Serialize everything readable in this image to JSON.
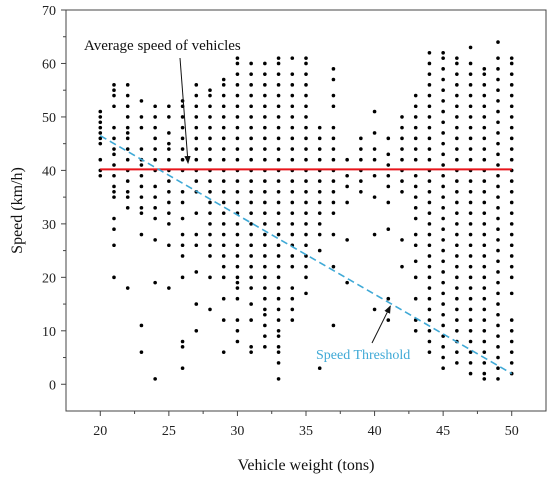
{
  "chart_data": {
    "type": "scatter",
    "xlabel": "Vehicle weight (tons)",
    "ylabel": "Speed (km/h)",
    "xlim": [
      17.5,
      52.5
    ],
    "ylim": [
      -5,
      70
    ],
    "xticks": [
      20,
      25,
      30,
      35,
      40,
      45,
      50
    ],
    "yticks": [
      0,
      10,
      20,
      30,
      40,
      50,
      60,
      70
    ],
    "grid": false,
    "series": [
      {
        "marker": "dot",
        "color": "#000000",
        "columns": [
          {
            "x": 20,
            "y": [
              39,
              40,
              42,
              45,
              46,
              47,
              48,
              49,
              50,
              51
            ]
          },
          {
            "x": 21,
            "y": [
              20,
              26,
              29,
              31,
              35,
              36,
              37,
              39,
              41,
              43,
              44,
              46,
              48,
              52,
              54,
              55,
              56
            ]
          },
          {
            "x": 22,
            "y": [
              18,
              33,
              35,
              36,
              38,
              40,
              42,
              44,
              46,
              47,
              48,
              50,
              52,
              54,
              56
            ]
          },
          {
            "x": 23,
            "y": [
              6,
              11,
              28,
              32,
              33,
              35,
              37,
              39,
              41,
              42,
              44,
              48,
              50,
              53
            ]
          },
          {
            "x": 24,
            "y": [
              1,
              19,
              27,
              31,
              33,
              35,
              37,
              40,
              42,
              44,
              46,
              48,
              50,
              52
            ]
          },
          {
            "x": 25,
            "y": [
              18,
              26,
              30,
              32,
              34,
              36,
              38,
              40,
              42,
              44,
              45,
              47,
              50,
              52
            ]
          },
          {
            "x": 26,
            "y": [
              3,
              7,
              8,
              20,
              24,
              26,
              28,
              31,
              34,
              36,
              40,
              42,
              44,
              46,
              48,
              50,
              52,
              53
            ]
          },
          {
            "x": 27,
            "y": [
              10,
              15,
              21,
              26,
              28,
              32,
              36,
              38,
              40,
              42,
              44,
              46,
              48,
              50,
              52,
              54,
              56
            ]
          },
          {
            "x": 28,
            "y": [
              14,
              20,
              24,
              26,
              28,
              30,
              32,
              34,
              36,
              38,
              40,
              42,
              44,
              46,
              48,
              50,
              52,
              54,
              55
            ]
          },
          {
            "x": 29,
            "y": [
              6,
              12,
              16,
              20,
              22,
              24,
              26,
              28,
              30,
              32,
              34,
              36,
              38,
              40,
              42,
              44,
              46,
              48,
              50,
              52,
              54,
              56,
              57
            ]
          },
          {
            "x": 30,
            "y": [
              8,
              10,
              12,
              16,
              18,
              19,
              20,
              22,
              24,
              26,
              28,
              30,
              32,
              34,
              36,
              38,
              40,
              42,
              44,
              46,
              48,
              50,
              52,
              54,
              56,
              58,
              60,
              61
            ]
          },
          {
            "x": 31,
            "y": [
              6,
              7,
              12,
              15,
              18,
              20,
              22,
              24,
              26,
              28,
              30,
              32,
              34,
              36,
              38,
              40,
              42,
              44,
              46,
              48,
              50,
              52,
              54,
              56,
              58,
              60
            ]
          },
          {
            "x": 32,
            "y": [
              7,
              9,
              11,
              13,
              14,
              16,
              18,
              20,
              22,
              24,
              26,
              28,
              30,
              32,
              34,
              36,
              38,
              40,
              42,
              44,
              46,
              48,
              50,
              52,
              54,
              56,
              58,
              60
            ]
          },
          {
            "x": 33,
            "y": [
              1,
              4,
              6,
              7,
              9,
              10,
              12,
              14,
              16,
              18,
              20,
              22,
              24,
              26,
              28,
              30,
              32,
              34,
              36,
              38,
              40,
              42,
              44,
              46,
              48,
              50,
              52,
              54,
              56,
              58,
              60,
              61
            ]
          },
          {
            "x": 34,
            "y": [
              12,
              14,
              16,
              18,
              22,
              24,
              26,
              28,
              30,
              32,
              34,
              36,
              38,
              40,
              42,
              44,
              46,
              48,
              50,
              52,
              54,
              56,
              58,
              61
            ]
          },
          {
            "x": 35,
            "y": [
              17,
              20,
              22,
              24,
              26,
              28,
              30,
              32,
              34,
              36,
              38,
              40,
              42,
              44,
              46,
              48,
              50,
              52,
              54,
              56,
              58,
              60,
              61
            ]
          },
          {
            "x": 36,
            "y": [
              3,
              25,
              28,
              30,
              32,
              34,
              36,
              38,
              40,
              42,
              44,
              46,
              48
            ]
          },
          {
            "x": 37,
            "y": [
              11,
              22,
              28,
              32,
              34,
              36,
              38,
              40,
              42,
              44,
              46,
              48,
              52,
              54,
              57,
              59
            ]
          },
          {
            "x": 38,
            "y": [
              19,
              27,
              34,
              37,
              39,
              42
            ]
          },
          {
            "x": 39,
            "y": [
              36,
              38,
              40,
              42,
              44,
              46
            ]
          },
          {
            "x": 40,
            "y": [
              14,
              28,
              35,
              39,
              42,
              44,
              47,
              51
            ]
          },
          {
            "x": 41,
            "y": [
              12,
              16,
              29,
              34,
              37,
              39,
              41,
              43,
              46
            ]
          },
          {
            "x": 42,
            "y": [
              22,
              27,
              36,
              38,
              40,
              42,
              44,
              46,
              48,
              50
            ]
          },
          {
            "x": 43,
            "y": [
              10,
              12,
              16,
              20,
              23,
              26,
              28,
              31,
              33,
              35,
              37,
              39,
              42,
              44,
              46,
              48,
              50,
              52,
              54
            ]
          },
          {
            "x": 44,
            "y": [
              6,
              8,
              10,
              12,
              14,
              16,
              18,
              20,
              22,
              24,
              26,
              28,
              30,
              32,
              34,
              36,
              38,
              40,
              42,
              44,
              46,
              48,
              50,
              52,
              54,
              56,
              58,
              60,
              62
            ]
          },
          {
            "x": 45,
            "y": [
              3,
              5,
              7,
              9,
              11,
              13,
              15,
              17,
              19,
              21,
              23,
              25,
              27,
              29,
              31,
              33,
              35,
              37,
              39,
              41,
              43,
              45,
              47,
              49,
              51,
              53,
              55,
              57,
              59,
              61,
              62
            ]
          },
          {
            "x": 46,
            "y": [
              4,
              6,
              8,
              10,
              12,
              14,
              16,
              18,
              20,
              22,
              24,
              26,
              28,
              30,
              32,
              34,
              36,
              38,
              40,
              42,
              44,
              46,
              48,
              50,
              52,
              54,
              56,
              58,
              60,
              61
            ]
          },
          {
            "x": 47,
            "y": [
              2,
              4,
              6,
              8,
              10,
              12,
              14,
              16,
              18,
              20,
              22,
              24,
              26,
              28,
              30,
              32,
              34,
              36,
              38,
              40,
              42,
              44,
              46,
              48,
              50,
              52,
              54,
              56,
              58,
              60,
              63
            ]
          },
          {
            "x": 48,
            "y": [
              1,
              2,
              4,
              6,
              8,
              10,
              12,
              14,
              16,
              18,
              20,
              22,
              24,
              26,
              28,
              30,
              32,
              34,
              36,
              38,
              40,
              42,
              44,
              46,
              48,
              50,
              52,
              54,
              56,
              58,
              59
            ]
          },
          {
            "x": 49,
            "y": [
              1,
              3,
              5,
              7,
              9,
              11,
              13,
              15,
              17,
              19,
              21,
              23,
              25,
              27,
              29,
              31,
              33,
              35,
              37,
              39,
              41,
              43,
              45,
              47,
              49,
              51,
              53,
              55,
              57,
              59,
              61,
              64
            ]
          },
          {
            "x": 50,
            "y": [
              2,
              4,
              6,
              8,
              10,
              12,
              17,
              20,
              22,
              24,
              26,
              28,
              30,
              32,
              34,
              36,
              38,
              40,
              42,
              44,
              46,
              48,
              50,
              52,
              54,
              56,
              58,
              60,
              61
            ]
          }
        ]
      }
    ],
    "lines": [
      {
        "name": "Average speed of vehicles",
        "style": "solid",
        "color": "#e8151b",
        "x": [
          20,
          50
        ],
        "y": [
          40.2,
          40.2
        ]
      },
      {
        "name": "Speed Threshold",
        "style": "dashed",
        "color": "#3fa9d6",
        "x": [
          20,
          50
        ],
        "y": [
          46.5,
          2
        ]
      }
    ],
    "annotations": [
      {
        "text": "Average speed of vehicles",
        "color": "#111111",
        "arrow_to": [
          26.4,
          40.6
        ]
      },
      {
        "text": "Speed Threshold",
        "color": "#3fa9d6",
        "arrow_to": [
          41.3,
          15.4
        ]
      }
    ]
  }
}
